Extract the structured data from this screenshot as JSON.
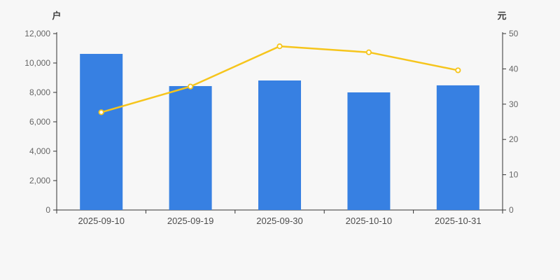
{
  "chart_data": {
    "type": "bar",
    "title": "",
    "categories": [
      "2025-09-10",
      "2025-09-19",
      "2025-09-30",
      "2025-10-10",
      "2025-10-31"
    ],
    "series": [
      {
        "type": "bar",
        "yaxis": "left",
        "values": [
          10620,
          8430,
          8810,
          8000,
          8480
        ],
        "color": "#3780e2"
      },
      {
        "type": "line",
        "yaxis": "right",
        "values": [
          27.7,
          35.0,
          46.4,
          44.7,
          39.6
        ],
        "color": "#f6c51c",
        "marker": "hollow-circle",
        "marker_fill": "#ffffff"
      }
    ],
    "left_axis": {
      "unit_label": "户",
      "min": 0,
      "max": 12000,
      "step": 2000,
      "ticks": [
        "0",
        "2,000",
        "4,000",
        "6,000",
        "8,000",
        "10,000",
        "12,000"
      ]
    },
    "right_axis": {
      "unit_label": "元",
      "min": 0,
      "max": 50,
      "step": 10,
      "ticks": [
        "0",
        "10",
        "20",
        "30",
        "40",
        "50"
      ]
    },
    "grid": false,
    "legend": false,
    "background_color": "#f7f7f7",
    "axis_line_color": "#333333",
    "tick_label_color": "#666666"
  }
}
